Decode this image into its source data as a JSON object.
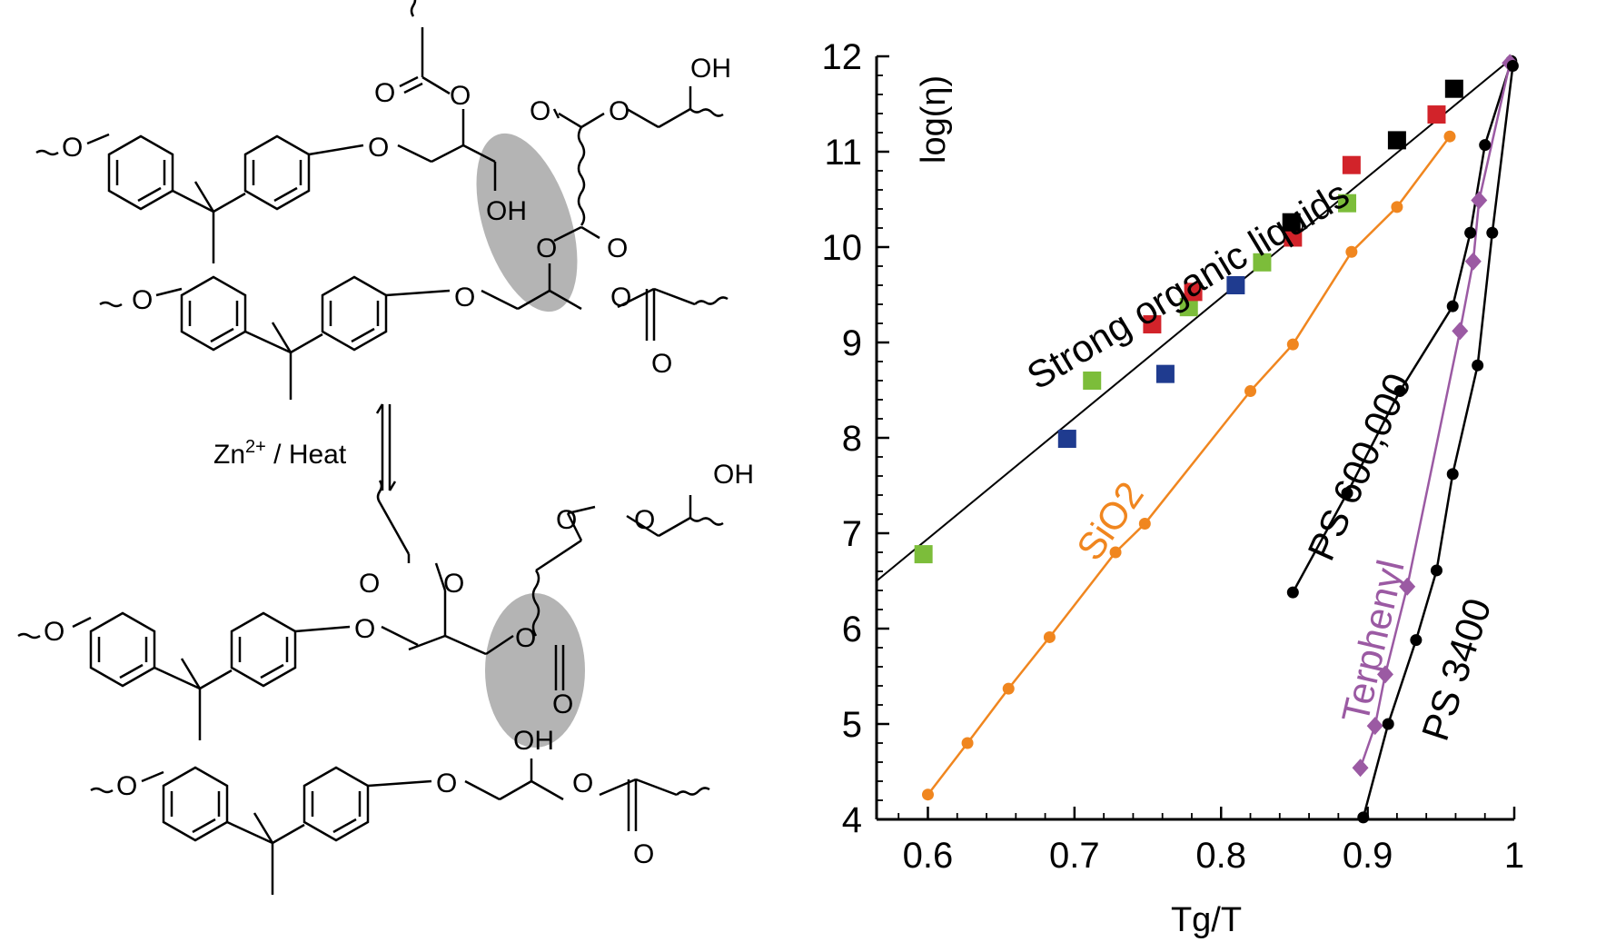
{
  "scheme": {
    "atoms": {
      "O": "O",
      "OH": "OH"
    },
    "arrow_label_base": "Zn",
    "arrow_label_sup": "2+",
    "arrow_label_rest": " / Heat"
  },
  "chart_data": {
    "type": "scatter",
    "xlabel": "Tg/T",
    "ylabel": "log(η)",
    "xlim": [
      0.565,
      1.0
    ],
    "ylim": [
      4,
      12
    ],
    "x_ticks": [
      "0.6",
      "0.7",
      "0.8",
      "0.9",
      "1"
    ],
    "y_ticks": [
      "4",
      "5",
      "6",
      "7",
      "8",
      "9",
      "10",
      "11",
      "12"
    ],
    "grid": false,
    "series": [
      {
        "name": "Strong organic liquids",
        "color": "#000000",
        "marker": "none",
        "fit_line": [
          [
            0.565,
            6.5
          ],
          [
            1.0,
            12.0
          ]
        ]
      },
      {
        "name": "",
        "color": "#7cbd3a",
        "marker": "square",
        "points": [
          [
            0.597,
            6.78
          ],
          [
            0.712,
            8.6
          ],
          [
            0.778,
            9.37
          ],
          [
            0.828,
            9.84
          ],
          [
            0.886,
            10.46
          ]
        ]
      },
      {
        "name": "",
        "color": "#d2232a",
        "marker": "square",
        "points": [
          [
            0.753,
            9.19
          ],
          [
            0.781,
            9.53
          ],
          [
            0.849,
            10.1
          ],
          [
            0.889,
            10.86
          ],
          [
            0.947,
            11.39
          ]
        ]
      },
      {
        "name": "",
        "color": "#1f3b8f",
        "marker": "square",
        "points": [
          [
            0.695,
            7.99
          ],
          [
            0.762,
            8.67
          ],
          [
            0.81,
            9.6
          ]
        ]
      },
      {
        "name": "",
        "color": "#000000",
        "marker": "square",
        "points": [
          [
            0.848,
            10.26
          ],
          [
            0.92,
            11.12
          ],
          [
            0.959,
            11.66
          ]
        ]
      },
      {
        "name": "SiO2",
        "color": "#f0861f",
        "marker": "circle",
        "points": [
          [
            0.6,
            4.26
          ],
          [
            0.627,
            4.8
          ],
          [
            0.655,
            5.37
          ],
          [
            0.683,
            5.91
          ],
          [
            0.728,
            6.8
          ],
          [
            0.748,
            7.1
          ],
          [
            0.82,
            8.49
          ],
          [
            0.849,
            8.98
          ],
          [
            0.889,
            9.95
          ],
          [
            0.92,
            10.42
          ],
          [
            0.956,
            11.16
          ]
        ]
      },
      {
        "name": "PS 600,000",
        "color": "#000000",
        "marker": "circle",
        "points": [
          [
            0.849,
            6.38
          ],
          [
            0.886,
            7.42
          ],
          [
            0.922,
            8.49
          ],
          [
            0.958,
            9.38
          ],
          [
            0.97,
            10.15
          ],
          [
            0.98,
            11.07
          ],
          [
            0.998,
            11.95
          ]
        ]
      },
      {
        "name": "Terphenyl",
        "color": "#9b5aa3",
        "marker": "diamond",
        "points": [
          [
            0.895,
            4.54
          ],
          [
            0.905,
            4.98
          ],
          [
            0.912,
            5.52
          ],
          [
            0.927,
            6.44
          ],
          [
            0.963,
            9.12
          ],
          [
            0.972,
            9.85
          ],
          [
            0.976,
            10.49
          ],
          [
            0.997,
            11.93
          ]
        ]
      },
      {
        "name": "PS 3400",
        "color": "#000000",
        "marker": "circle",
        "points": [
          [
            0.897,
            4.02
          ],
          [
            0.914,
            5.0
          ],
          [
            0.933,
            5.88
          ],
          [
            0.947,
            6.61
          ],
          [
            0.958,
            7.62
          ],
          [
            0.975,
            8.76
          ],
          [
            0.985,
            10.15
          ],
          [
            0.999,
            11.9
          ]
        ]
      }
    ]
  }
}
